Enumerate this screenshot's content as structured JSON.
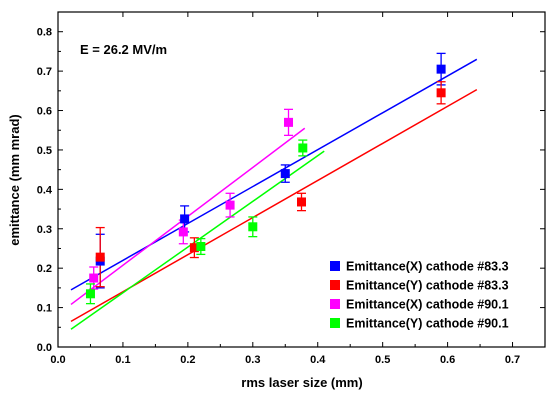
{
  "chart_data": {
    "type": "scatter",
    "title": "",
    "xlabel": "rms laser size (mm)",
    "ylabel": "emittance (mm mrad)",
    "xlim": [
      0.0,
      0.75
    ],
    "ylim": [
      0.0,
      0.85
    ],
    "x_ticks": [
      "0.0",
      "0.1",
      "0.2",
      "0.3",
      "0.4",
      "0.5",
      "0.6",
      "0.7"
    ],
    "y_ticks": [
      "0.0",
      "0.1",
      "0.2",
      "0.3",
      "0.4",
      "0.5",
      "0.6",
      "0.7",
      "0.8"
    ],
    "annotation": "E = 26.2 MV/m",
    "grid": false,
    "legend_position": "bottom-right",
    "series": [
      {
        "name": "Emittance(X) cathode #83.3",
        "color": "#0000ff",
        "points": [
          {
            "x": 0.065,
            "y": 0.218,
            "err": 0.068
          },
          {
            "x": 0.195,
            "y": 0.325,
            "err": 0.033
          },
          {
            "x": 0.35,
            "y": 0.44,
            "err": 0.022
          },
          {
            "x": 0.59,
            "y": 0.705,
            "err": 0.04
          }
        ],
        "fit": {
          "x": [
            0.02,
            0.645
          ],
          "y": [
            0.145,
            0.73
          ]
        }
      },
      {
        "name": "Emittance(Y) cathode #83.3",
        "color": "#ff0000",
        "points": [
          {
            "x": 0.065,
            "y": 0.228,
            "err": 0.075
          },
          {
            "x": 0.21,
            "y": 0.252,
            "err": 0.025
          },
          {
            "x": 0.375,
            "y": 0.368,
            "err": 0.022
          },
          {
            "x": 0.59,
            "y": 0.645,
            "err": 0.028
          }
        ],
        "fit": {
          "x": [
            0.02,
            0.645
          ],
          "y": [
            0.065,
            0.653
          ]
        }
      },
      {
        "name": "Emittance(X) cathode #90.1",
        "color": "#ff00ff",
        "points": [
          {
            "x": 0.055,
            "y": 0.175,
            "err": 0.028
          },
          {
            "x": 0.193,
            "y": 0.292,
            "err": 0.03
          },
          {
            "x": 0.265,
            "y": 0.36,
            "err": 0.03
          },
          {
            "x": 0.355,
            "y": 0.57,
            "err": 0.033
          }
        ],
        "fit": {
          "x": [
            0.02,
            0.38
          ],
          "y": [
            0.108,
            0.555
          ]
        }
      },
      {
        "name": "Emittance(Y) cathode #90.1",
        "color": "#00ff00",
        "points": [
          {
            "x": 0.05,
            "y": 0.135,
            "err": 0.025
          },
          {
            "x": 0.22,
            "y": 0.255,
            "err": 0.02
          },
          {
            "x": 0.3,
            "y": 0.305,
            "err": 0.025
          },
          {
            "x": 0.377,
            "y": 0.505,
            "err": 0.02
          }
        ],
        "fit": {
          "x": [
            0.02,
            0.41
          ],
          "y": [
            0.045,
            0.497
          ]
        }
      }
    ]
  }
}
